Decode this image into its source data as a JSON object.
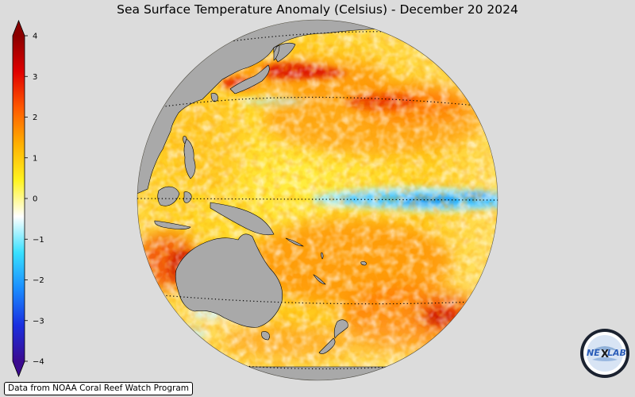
{
  "title": "Sea Surface Temperature Anomaly (Celsius) - December 20 2024",
  "credit": "Data from NOAA Coral Reef Watch Program",
  "logo": {
    "text_left": "NE",
    "text_right": "LAB",
    "icon": "nexlab-globe-logo"
  },
  "colorbar": {
    "min": -4,
    "max": 4,
    "ticks": [
      {
        "value": 4,
        "label": "4"
      },
      {
        "value": 3,
        "label": "3"
      },
      {
        "value": 2,
        "label": "2"
      },
      {
        "value": 1,
        "label": "1"
      },
      {
        "value": 0,
        "label": "0"
      },
      {
        "value": -1,
        "label": "−1"
      },
      {
        "value": -2,
        "label": "−2"
      },
      {
        "value": -3,
        "label": "−3"
      },
      {
        "value": -4,
        "label": "−4"
      }
    ],
    "colors": [
      "#3b0a8f",
      "#1a2fe0",
      "#1a8cff",
      "#38e0ff",
      "#ffffff",
      "#fff320",
      "#ffb000",
      "#ff5a00",
      "#e00000",
      "#8a0000"
    ],
    "extend": "both"
  },
  "map": {
    "projection": "orthographic",
    "land_color": "#a9a9a9",
    "ocean_feature": "equatorial cool anomaly (La Nina pattern)",
    "gridlines": "dotted latitude lines"
  }
}
